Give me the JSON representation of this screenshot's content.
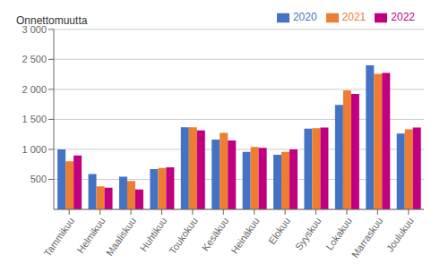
{
  "chart_data": {
    "type": "bar",
    "ylabel": "Onnettomuutta",
    "categories": [
      "Tammikuu",
      "Helmikuu",
      "Maaliskuu",
      "Huhtikuu",
      "Toukokuu",
      "Kesäkuu",
      "Heinäkuu",
      "Elokuu",
      "Syyskuu",
      "Lokakuu",
      "Marraskuu",
      "Joulukuu"
    ],
    "series": [
      {
        "name": "2020",
        "color": "#4472C4",
        "values": [
          1000,
          590,
          545,
          670,
          1370,
          1165,
          960,
          910,
          1345,
          1740,
          2400,
          1265
        ]
      },
      {
        "name": "2021",
        "color": "#ED7D31",
        "values": [
          800,
          385,
          475,
          690,
          1370,
          1275,
          1040,
          960,
          1355,
          1985,
          2260,
          1335
        ]
      },
      {
        "name": "2022",
        "color": "#C00080",
        "values": [
          900,
          360,
          330,
          700,
          1315,
          1150,
          1025,
          1000,
          1365,
          1925,
          2275,
          1365
        ]
      }
    ],
    "ylim": [
      0,
      3000
    ],
    "yticks": [
      500,
      {
        "value": 1000,
        "label": "1 000"
      },
      {
        "value": 1500,
        "label": "1 500"
      },
      {
        "value": 2000,
        "label": "2 000"
      },
      {
        "value": 2500,
        "label": "2 500"
      },
      {
        "value": 3000,
        "label": "3 000"
      }
    ],
    "grid": true,
    "legend": "upper right"
  }
}
